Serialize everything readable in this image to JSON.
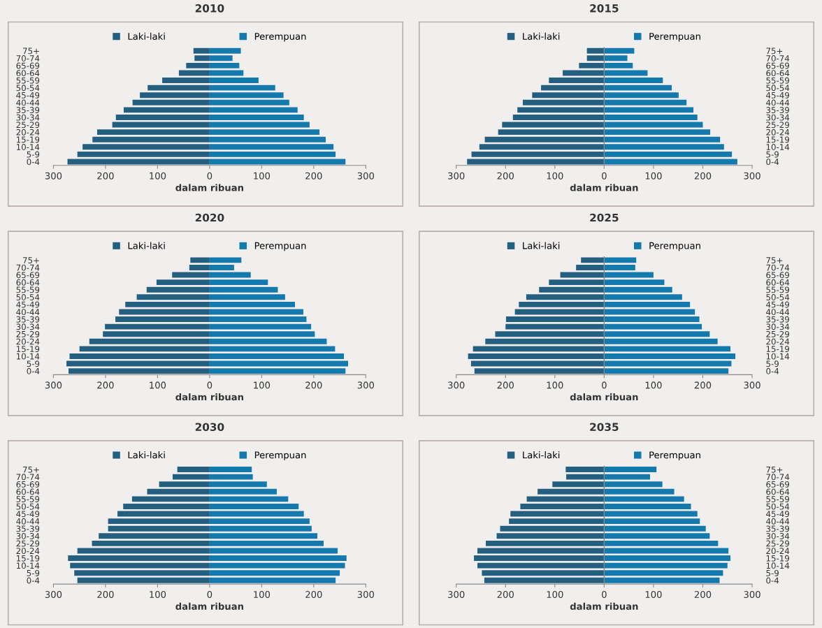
{
  "chart_data": [
    {
      "type": "bar",
      "orientation": "horizontal",
      "stacked": true,
      "title": "2010",
      "xlabel": "dalam ribuan",
      "legend": "top",
      "grid": false,
      "categories": [
        "75+",
        "70-74",
        "65-69",
        "60-64",
        "55-59",
        "50-54",
        "45-49",
        "40-44",
        "35-39",
        "30-34",
        "25-29",
        "20-24",
        "15-19",
        "10-14",
        "5-9",
        "0-4"
      ],
      "xlim": [
        -300,
        300
      ],
      "xticks": [
        {
          "value": -300,
          "label": "300"
        },
        {
          "value": -200,
          "label": "200"
        },
        {
          "value": -100,
          "label": "100"
        },
        0,
        100,
        200,
        300
      ],
      "series": [
        {
          "name": "Laki-laki",
          "color": "#245f80",
          "values": [
            -31,
            -29,
            -45,
            -59,
            -91,
            -119,
            -134,
            -148,
            -165,
            -180,
            -187,
            -216,
            -225,
            -244,
            -254,
            -273
          ]
        },
        {
          "name": "Perempuan",
          "color": "#1479ad",
          "values": [
            60,
            44,
            57,
            65,
            94,
            126,
            142,
            153,
            169,
            181,
            192,
            211,
            223,
            238,
            242,
            261
          ]
        }
      ]
    },
    {
      "type": "bar",
      "orientation": "horizontal",
      "stacked": true,
      "title": "2015",
      "xlabel": "dalam ribuan",
      "legend": "top",
      "grid": false,
      "ref_lines": [
        {
          "axis": "x",
          "value": 0,
          "color": "#8a8a8a"
        }
      ],
      "categories": [
        "75+",
        "70-74",
        "65-69",
        "60-64",
        "55-59",
        "50-54",
        "45-49",
        "40-44",
        "35-39",
        "30-34",
        "25-29",
        "20-24",
        "15-19",
        "10-14",
        "5-9",
        "0-4"
      ],
      "xlim": [
        -300,
        300
      ],
      "xticks": [
        {
          "value": -300,
          "label": "300"
        },
        {
          "value": -200,
          "label": "200"
        },
        {
          "value": -100,
          "label": "100"
        },
        0,
        100,
        200,
        300
      ],
      "series": [
        {
          "name": "Laki-laki",
          "color": "#245f80",
          "values": [
            -35,
            -35,
            -51,
            -84,
            -112,
            -128,
            -146,
            -165,
            -176,
            -185,
            -207,
            -215,
            -242,
            -253,
            -269,
            -278
          ]
        },
        {
          "name": "Perempuan",
          "color": "#1479ad",
          "values": [
            61,
            47,
            58,
            88,
            119,
            137,
            151,
            167,
            181,
            189,
            200,
            215,
            235,
            243,
            259,
            270
          ]
        }
      ]
    },
    {
      "type": "bar",
      "orientation": "horizontal",
      "stacked": true,
      "title": "2020",
      "xlabel": "dalam ribuan",
      "legend": "top",
      "grid": false,
      "categories": [
        "75+",
        "70-74",
        "65-69",
        "60-64",
        "55-59",
        "50-54",
        "45-49",
        "40-44",
        "35-39",
        "30-34",
        "25-29",
        "20-24",
        "15-19",
        "10-14",
        "5-9",
        "0-4"
      ],
      "xlim": [
        -300,
        300
      ],
      "xticks": [
        {
          "value": -300,
          "label": "300"
        },
        {
          "value": -200,
          "label": "200"
        },
        {
          "value": -100,
          "label": "100"
        },
        0,
        100,
        200,
        300
      ],
      "series": [
        {
          "name": "Laki-laki",
          "color": "#245f80",
          "values": [
            -37,
            -39,
            -72,
            -102,
            -121,
            -140,
            -162,
            -174,
            -181,
            -201,
            -205,
            -231,
            -250,
            -269,
            -275,
            -271
          ]
        },
        {
          "name": "Perempuan",
          "color": "#1479ad",
          "values": [
            61,
            47,
            79,
            112,
            131,
            145,
            164,
            180,
            186,
            195,
            202,
            225,
            241,
            258,
            266,
            261
          ]
        }
      ]
    },
    {
      "type": "bar",
      "orientation": "horizontal",
      "stacked": true,
      "title": "2025",
      "xlabel": "dalam ribuan",
      "legend": "top",
      "grid": false,
      "ref_lines": [
        {
          "axis": "x",
          "value": 0,
          "color": "#8a8a8a"
        }
      ],
      "categories": [
        "75+",
        "70-74",
        "65-69",
        "60-64",
        "55-59",
        "50-54",
        "45-49",
        "40-44",
        "35-39",
        "30-34",
        "25-29",
        "20-24",
        "15-19",
        "10-14",
        "5-9",
        "0-4"
      ],
      "xlim": [
        -300,
        300
      ],
      "xticks": [
        {
          "value": -300,
          "label": "300"
        },
        {
          "value": -200,
          "label": "200"
        },
        {
          "value": -100,
          "label": "100"
        },
        0,
        100,
        200,
        300
      ],
      "series": [
        {
          "name": "Laki-laki",
          "color": "#245f80",
          "values": [
            -47,
            -57,
            -89,
            -112,
            -132,
            -158,
            -173,
            -181,
            -199,
            -200,
            -221,
            -241,
            -266,
            -276,
            -270,
            -263
          ]
        },
        {
          "name": "Perempuan",
          "color": "#1479ad",
          "values": [
            65,
            63,
            100,
            122,
            138,
            158,
            174,
            184,
            193,
            198,
            214,
            230,
            256,
            266,
            258,
            252
          ]
        }
      ]
    },
    {
      "type": "bar",
      "orientation": "horizontal",
      "stacked": true,
      "title": "2030",
      "xlabel": "dalam ribuan",
      "legend": "top",
      "grid": false,
      "categories": [
        "75+",
        "70-74",
        "65-69",
        "60-64",
        "55-59",
        "50-54",
        "45-49",
        "40-44",
        "35-39",
        "30-34",
        "25-29",
        "20-24",
        "15-19",
        "10-14",
        "5-9",
        "0-4"
      ],
      "xlim": [
        -300,
        300
      ],
      "xticks": [
        {
          "value": -300,
          "label": "300"
        },
        {
          "value": -200,
          "label": "200"
        },
        {
          "value": -100,
          "label": "100"
        },
        0,
        100,
        200,
        300
      ],
      "series": [
        {
          "name": "Laki-laki",
          "color": "#245f80",
          "values": [
            -62,
            -71,
            -97,
            -120,
            -149,
            -166,
            -177,
            -195,
            -195,
            -213,
            -226,
            -254,
            -272,
            -268,
            -260,
            -254
          ]
        },
        {
          "name": "Perempuan",
          "color": "#1479ad",
          "values": [
            81,
            83,
            110,
            129,
            151,
            171,
            181,
            192,
            196,
            207,
            219,
            246,
            263,
            260,
            250,
            242
          ]
        }
      ]
    },
    {
      "type": "bar",
      "orientation": "horizontal",
      "stacked": true,
      "title": "2035",
      "xlabel": "dalam ribuan",
      "legend": "top",
      "grid": false,
      "ref_lines": [
        {
          "axis": "x",
          "value": 0,
          "color": "#8a8a8a"
        }
      ],
      "categories": [
        "75+",
        "70-74",
        "65-69",
        "60-64",
        "55-59",
        "50-54",
        "45-49",
        "40-44",
        "35-39",
        "30-34",
        "25-29",
        "20-24",
        "15-19",
        "10-14",
        "5-9",
        "0-4"
      ],
      "xlim": [
        -300,
        300
      ],
      "xticks": [
        {
          "value": -300,
          "label": "300"
        },
        {
          "value": -200,
          "label": "200"
        },
        {
          "value": -100,
          "label": "100"
        },
        0,
        100,
        200,
        300
      ],
      "series": [
        {
          "name": "Laki-laki",
          "color": "#245f80",
          "values": [
            -78,
            -77,
            -105,
            -135,
            -157,
            -170,
            -190,
            -193,
            -211,
            -218,
            -240,
            -257,
            -264,
            -257,
            -248,
            -243
          ]
        },
        {
          "name": "Perempuan",
          "color": "#1479ad",
          "values": [
            106,
            93,
            118,
            142,
            162,
            176,
            189,
            194,
            206,
            214,
            231,
            252,
            256,
            250,
            241,
            234
          ]
        }
      ]
    }
  ]
}
